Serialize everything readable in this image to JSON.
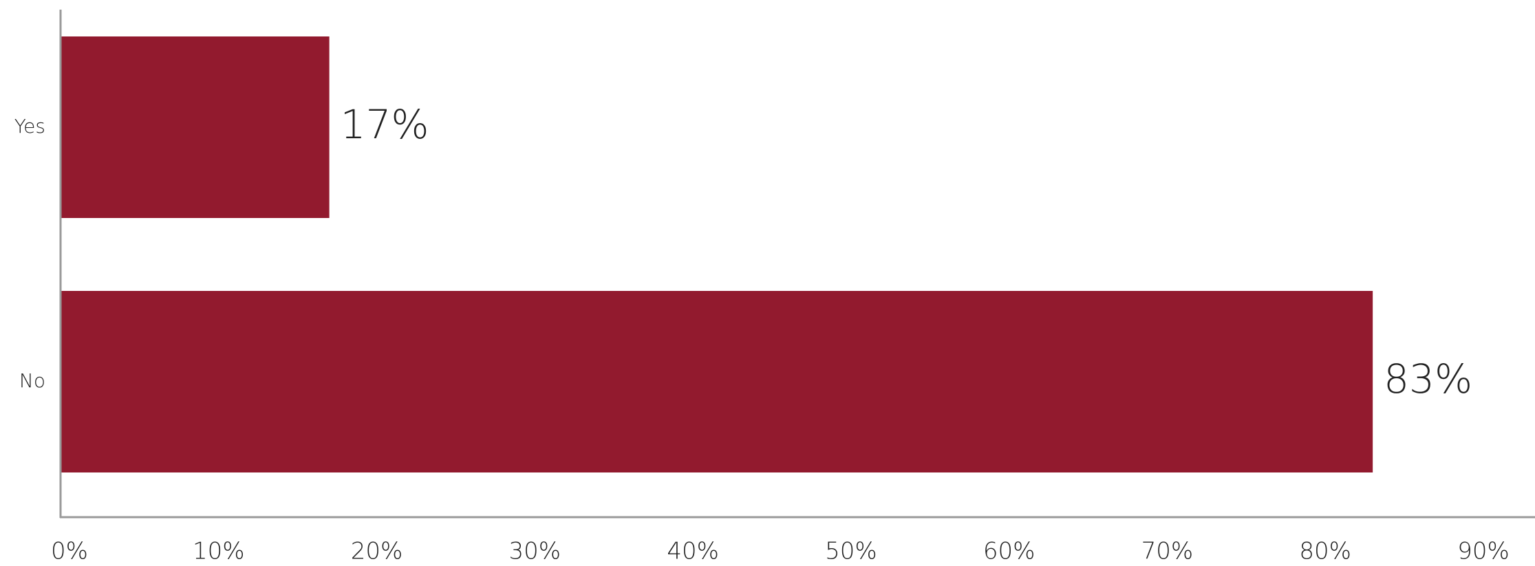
{
  "chart_data": {
    "type": "bar",
    "orientation": "horizontal",
    "categories": [
      "Yes",
      "No"
    ],
    "values": [
      17,
      83
    ],
    "data_labels": [
      "17%",
      "83%"
    ],
    "xlim": [
      0,
      90
    ],
    "x_ticks": [
      0,
      10,
      20,
      30,
      40,
      50,
      60,
      70,
      80,
      90
    ],
    "x_tick_labels": [
      "0%",
      "10%",
      "20%",
      "30%",
      "40%",
      "50%",
      "60%",
      "70%",
      "80%",
      "90%"
    ],
    "title": "",
    "xlabel": "",
    "ylabel": "",
    "grid": false,
    "legend": "none",
    "bar_color": "#921a2e",
    "axis_color": "#9a9a9a"
  }
}
